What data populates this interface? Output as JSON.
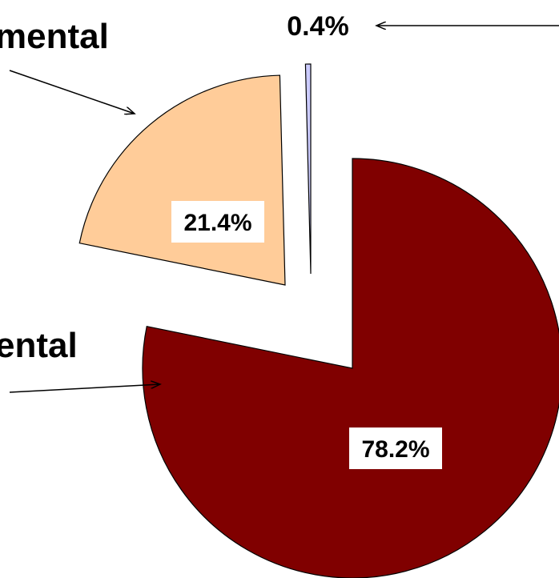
{
  "chart_data": {
    "type": "pie",
    "title": "",
    "slices": [
      {
        "label": "78.2%",
        "value": 78.2,
        "color": "#800000"
      },
      {
        "label": "21.4%",
        "value": 21.4,
        "color": "#FFCC99"
      },
      {
        "label": "0.4%",
        "value": 0.4,
        "color": "#CCCCFF"
      }
    ],
    "annotations": [
      "mental",
      "ental"
    ],
    "legend": "none",
    "exploded": true,
    "edge_color": "#000000"
  }
}
